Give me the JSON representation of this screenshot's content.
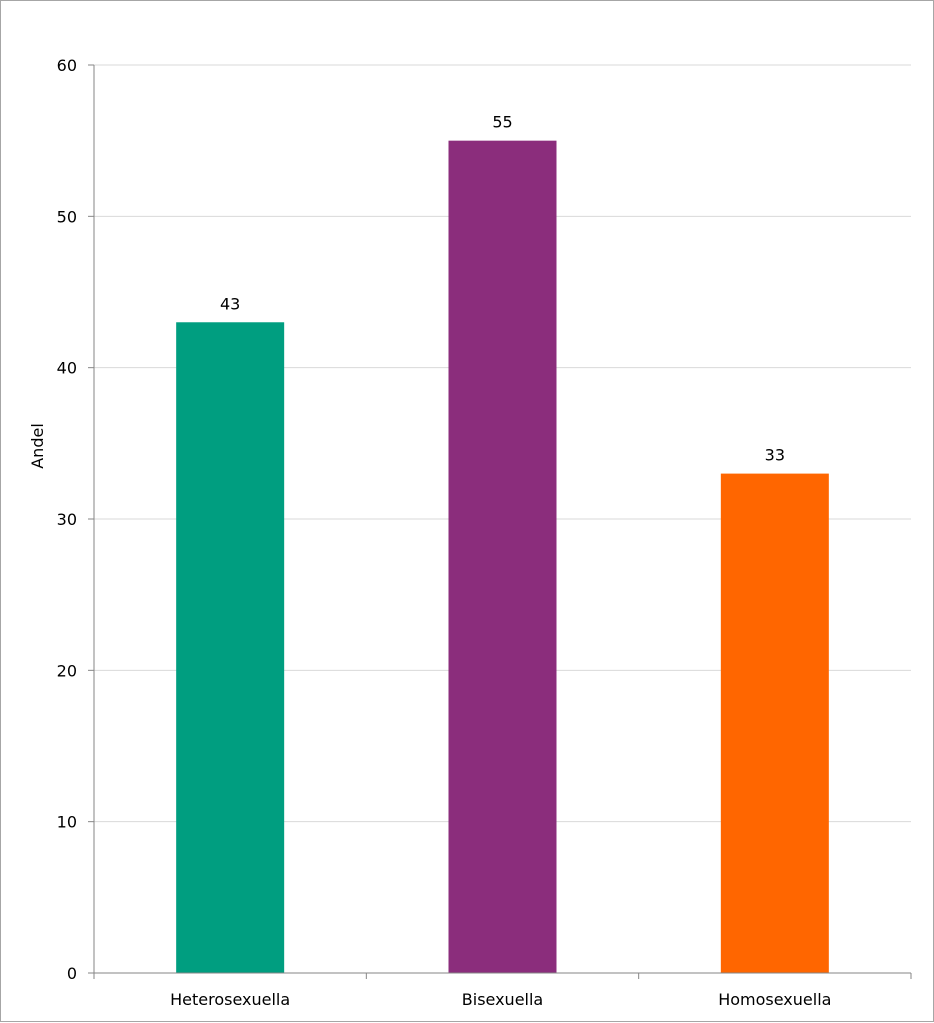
{
  "chart_data": {
    "type": "bar",
    "categories": [
      "Heterosexuella",
      "Bisexuella",
      "Homosexuella"
    ],
    "values": [
      43,
      55,
      33
    ],
    "colors": [
      "#009e80",
      "#8b2d7c",
      "#ff6600"
    ],
    "title": "",
    "xlabel": "",
    "ylabel": "Andel",
    "ylim": [
      0,
      60
    ],
    "yticks": [
      0,
      10,
      20,
      30,
      40,
      50,
      60
    ],
    "grid": true,
    "legend": "none",
    "data_labels": true
  }
}
